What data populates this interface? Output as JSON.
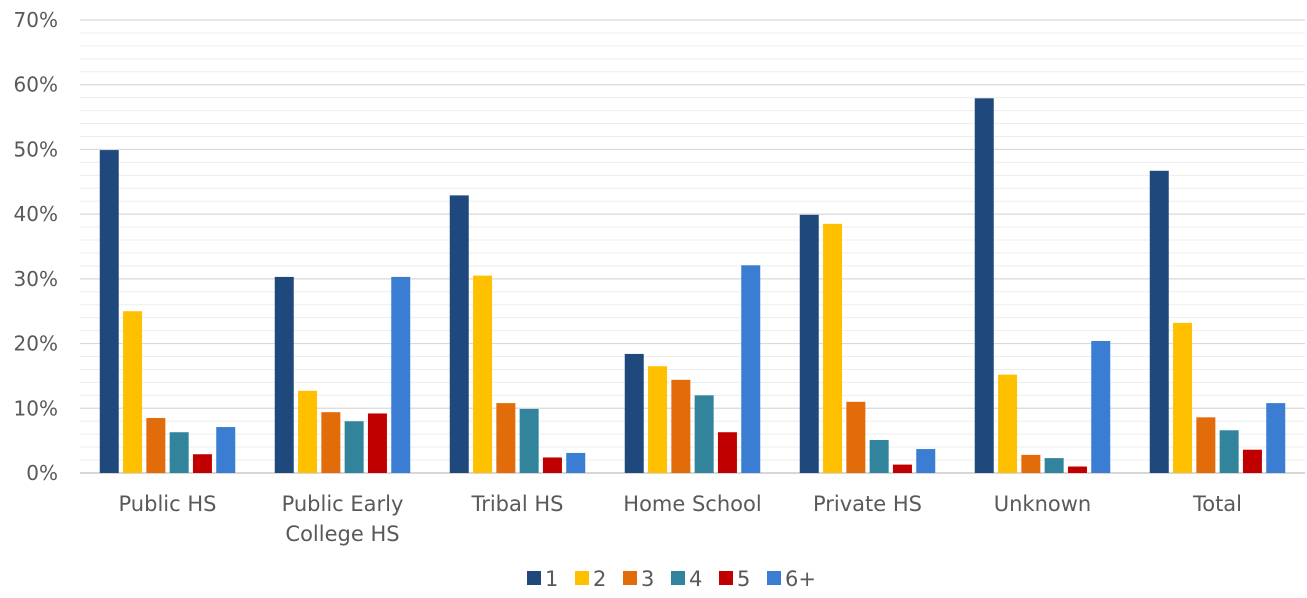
{
  "chart_data": {
    "type": "bar",
    "categories": [
      [
        "Public HS"
      ],
      [
        "Public Early",
        "College HS"
      ],
      [
        "Tribal HS"
      ],
      [
        "Home School"
      ],
      [
        "Private HS"
      ],
      [
        "Unknown"
      ],
      [
        "Total"
      ]
    ],
    "series": [
      {
        "name": "1",
        "color": "#1F497D",
        "values": [
          49.9,
          30.3,
          42.9,
          18.4,
          39.9,
          57.9,
          46.7
        ]
      },
      {
        "name": "2",
        "color": "#FFC000",
        "values": [
          25.0,
          12.7,
          30.5,
          16.5,
          38.5,
          15.2,
          23.2
        ]
      },
      {
        "name": "3",
        "color": "#E36C0A",
        "values": [
          8.5,
          9.4,
          10.8,
          14.4,
          11.0,
          2.8,
          8.6
        ]
      },
      {
        "name": "4",
        "color": "#31849B",
        "values": [
          6.3,
          8.0,
          9.9,
          12.0,
          5.1,
          2.3,
          6.6
        ]
      },
      {
        "name": "5",
        "color": "#C00000",
        "values": [
          2.9,
          9.2,
          2.4,
          6.3,
          1.3,
          1.0,
          3.6
        ]
      },
      {
        "name": "6+",
        "color": "#3A7DD3",
        "values": [
          7.1,
          30.3,
          3.1,
          32.1,
          3.7,
          20.4,
          10.8
        ]
      }
    ],
    "ylim": [
      0,
      70
    ],
    "major_ticks": [
      0,
      10,
      20,
      30,
      40,
      50,
      60,
      70
    ],
    "tick_suffix": "%",
    "minor_step": 2,
    "grid": true,
    "legend_position": "bottom"
  }
}
